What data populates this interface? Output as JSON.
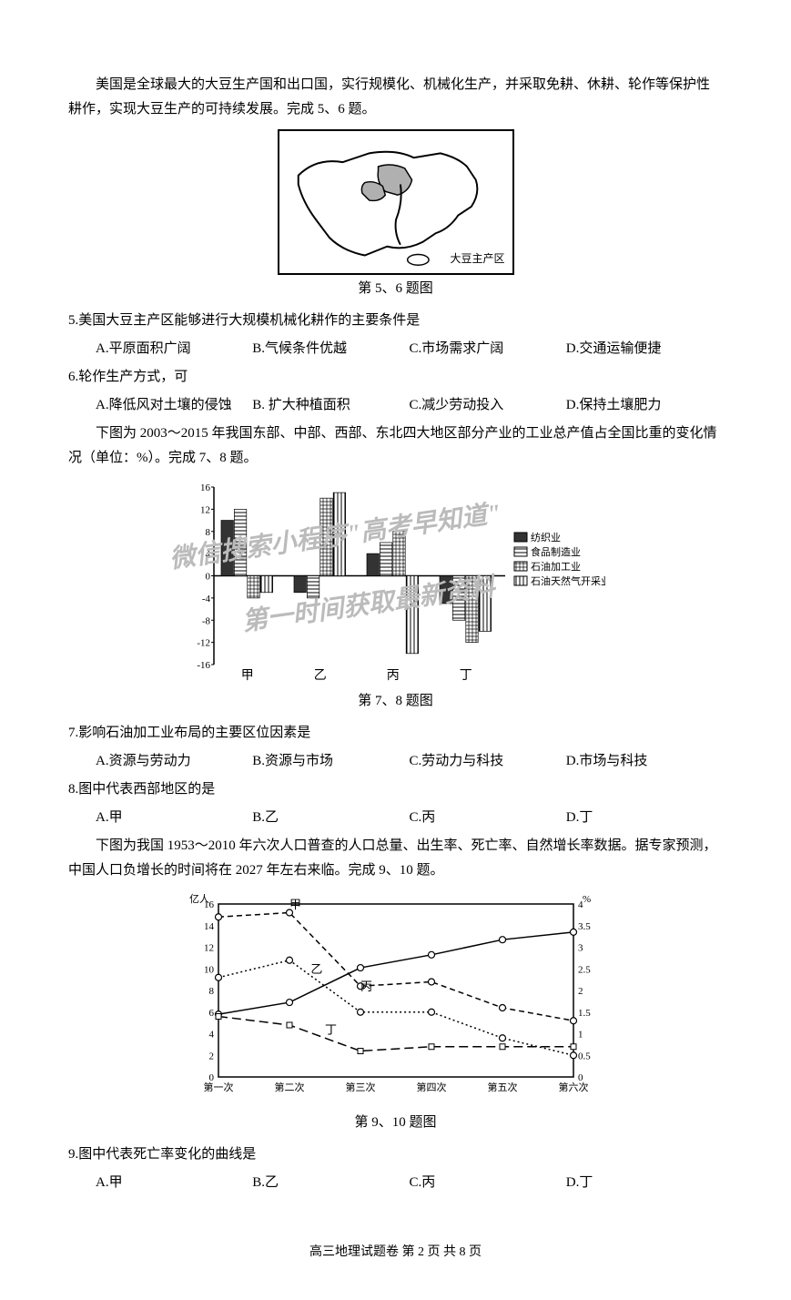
{
  "intro5_6": "美国是全球最大的大豆生产国和出口国，实行规模化、机械化生产，并采取免耕、休耕、轮作等保护性耕作，实现大豆生产的可持续发展。完成 5、6 题。",
  "fig5_6": {
    "caption": "第 5、6 题图",
    "label": "大豆主产区",
    "outline_color": "#000000",
    "fill_color": "#b0b0b0",
    "border_width": 2
  },
  "q5": {
    "text": "5.美国大豆主产区能够进行大规模机械化耕作的主要条件是",
    "optA": "A.平原面积广阔",
    "optB": "B.气候条件优越",
    "optC": "C.市场需求广阔",
    "optD": "D.交通运输便捷"
  },
  "q6": {
    "text": "6.轮作生产方式，可",
    "optA": "A.降低风对土壤的侵蚀",
    "optB": "B. 扩大种植面积",
    "optC": "C.减少劳动投入",
    "optD": "D.保持土壤肥力"
  },
  "intro7_8": "下图为 2003～2015 年我国东部、中部、西部、东北四大地区部分产业的工业总产值占全国比重的变化情况（单位：%）。完成 7、8 题。",
  "fig7_8": {
    "caption": "第 7、8 题图",
    "type": "bar",
    "y_ticks": [
      -16,
      -12,
      -8,
      -4,
      0,
      4,
      8,
      12,
      16
    ],
    "ylim": [
      -16,
      16
    ],
    "categories": [
      "甲",
      "乙",
      "丙",
      "丁"
    ],
    "series": [
      {
        "name": "纺织业",
        "pattern": "solid",
        "color": "#333333",
        "values": [
          10,
          -3,
          4,
          -5
        ]
      },
      {
        "name": "食品制造业",
        "pattern": "hlines",
        "color": "#000000",
        "values": [
          12,
          -4,
          6,
          -8
        ]
      },
      {
        "name": "石油加工业",
        "pattern": "grid",
        "color": "#555555",
        "values": [
          -4,
          14,
          8,
          -12
        ]
      },
      {
        "name": "石油天然气开采业",
        "pattern": "vlines",
        "color": "#000000",
        "values": [
          -3,
          15,
          -14,
          -10
        ]
      }
    ],
    "legend_position": "right",
    "bar_width": 0.18,
    "font_size": 11,
    "axis_color": "#000000"
  },
  "watermark1": "微信搜索小程序\"高考早知道\"",
  "watermark2": "第一时间获取最新资料",
  "q7": {
    "text": "7.影响石油加工业布局的主要区位因素是",
    "optA": "A.资源与劳动力",
    "optB": "B.资源与市场",
    "optC": "C.劳动力与科技",
    "optD": "D.市场与科技"
  },
  "q8": {
    "text": "8.图中代表西部地区的是",
    "optA": "A.甲",
    "optB": "B.乙",
    "optC": "C.丙",
    "optD": "D.丁"
  },
  "intro9_10": "下图为我国 1953～2010 年六次人口普查的人口总量、出生率、死亡率、自然增长率数据。据专家预测，中国人口负增长的时间将在 2027 年左右来临。完成 9、10 题。",
  "fig9_10": {
    "caption": "第 9、10 题图",
    "type": "line",
    "x_labels": [
      "第一次",
      "第二次",
      "第三次",
      "第四次",
      "第五次",
      "第六次"
    ],
    "left_axis": {
      "label": "亿人",
      "min": 0,
      "max": 16,
      "ticks": [
        0,
        2,
        4,
        6,
        8,
        10,
        12,
        14,
        16
      ]
    },
    "right_axis": {
      "label": "%",
      "min": 0,
      "max": 4,
      "ticks": [
        0,
        0.5,
        1,
        1.5,
        2,
        2.5,
        3,
        3.5,
        4
      ]
    },
    "lines": {
      "甲": {
        "style": "dashed",
        "marker": "circle",
        "values_pct": [
          3.7,
          3.8,
          2.1,
          2.2,
          1.6,
          1.3
        ],
        "label_pos": [
          1,
          3.9
        ]
      },
      "乙": {
        "style": "dotted",
        "marker": "circle",
        "values_pct": [
          2.3,
          2.7,
          1.5,
          1.5,
          0.9,
          0.5
        ],
        "label_pos": [
          1.3,
          2.4
        ]
      },
      "丙": {
        "style": "solid",
        "marker": "circle",
        "values_yiren": [
          5.8,
          6.9,
          10.1,
          11.3,
          12.7,
          13.4
        ],
        "label_pos": [
          2,
          2.0
        ]
      },
      "丁": {
        "style": "longdash",
        "marker": "square",
        "values_pct": [
          1.4,
          1.2,
          0.6,
          0.7,
          0.7,
          0.7
        ],
        "label_pos": [
          1.5,
          1.0
        ]
      }
    },
    "grid": false,
    "border": true,
    "font_size": 11,
    "axis_color": "#000000",
    "line_color": "#000000"
  },
  "q9": {
    "text": "9.图中代表死亡率变化的曲线是",
    "optA": "A.甲",
    "optB": "B.乙",
    "optC": "C.丙",
    "optD": "D.丁"
  },
  "footer": "高三地理试题卷  第 2 页  共 8 页"
}
